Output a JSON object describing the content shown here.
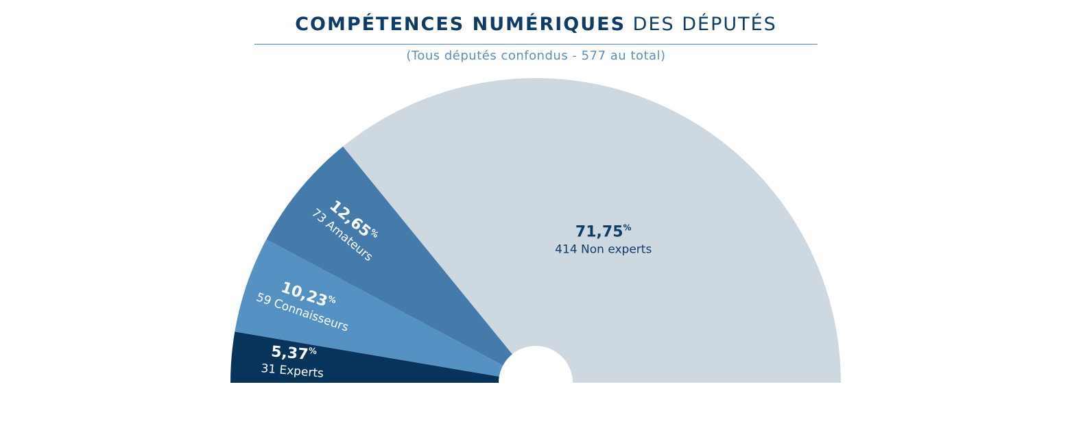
{
  "title": {
    "bold": "COMPÉTENCES NUMÉRIQUES",
    "light": "DES DÉPUTÉS"
  },
  "subtitle": "(Tous députés confondus - 577 au total)",
  "chart_data": {
    "type": "pie",
    "variant": "half-donut",
    "total": 577,
    "percent_symbol": "%",
    "slices": [
      {
        "percent_label": "5,37",
        "count_label": "31 Experts",
        "value": 31,
        "percent": 5.37,
        "color": "#08345b",
        "text_color": "#ffffff"
      },
      {
        "percent_label": "10,23",
        "count_label": "59 Connaisseurs",
        "value": 59,
        "percent": 10.23,
        "color": "#5591c2",
        "text_color": "#ffffff"
      },
      {
        "percent_label": "12,65",
        "count_label": "73 Amateurs",
        "value": 73,
        "percent": 12.65,
        "color": "#457bab",
        "text_color": "#ffffff"
      },
      {
        "percent_label": "71,75",
        "count_label": "414 Non experts",
        "value": 414,
        "percent": 71.75,
        "color": "#cdd8e1",
        "text_color": "#0f3c66"
      }
    ]
  }
}
